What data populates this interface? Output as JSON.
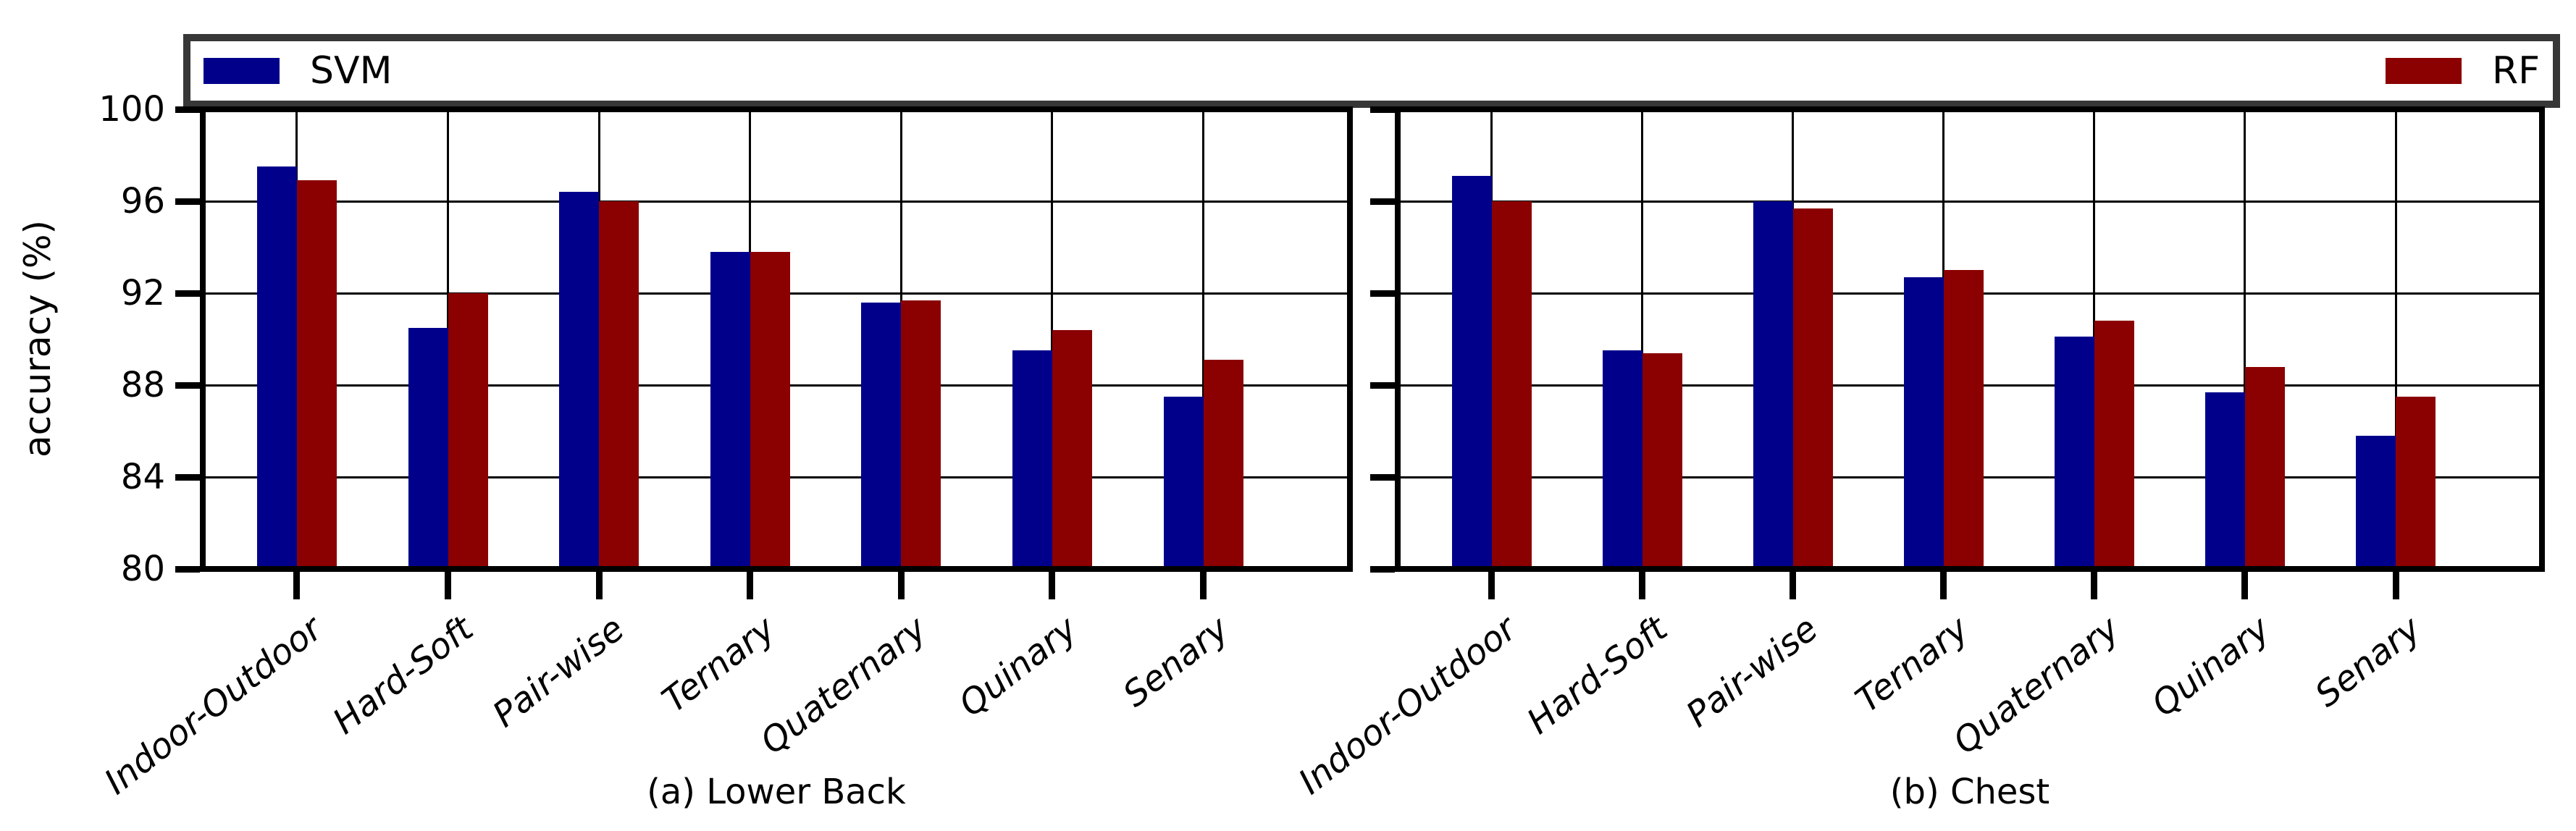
{
  "figure": {
    "ylabel": "accuracy (%)",
    "background": "#ffffff",
    "axis_color": "#000000",
    "legend": {
      "border_color": "#373737",
      "items": [
        {
          "label": "SVM",
          "color": "#00008B"
        },
        {
          "label": "RF",
          "color": "#8B0000"
        }
      ]
    }
  },
  "chart_data": [
    {
      "type": "bar",
      "title": "(a) Lower Back",
      "categories": [
        "Indoor-Outdoor",
        "Hard-Soft",
        "Pair-wise",
        "Ternary",
        "Quaternary",
        "Quinary",
        "Senary"
      ],
      "series": [
        {
          "name": "SVM",
          "color": "#00008B",
          "values": [
            97.5,
            90.5,
            96.4,
            93.8,
            91.6,
            89.5,
            87.5
          ]
        },
        {
          "name": "RF",
          "color": "#8B0000",
          "values": [
            96.9,
            92.0,
            96.0,
            93.8,
            91.7,
            90.4,
            89.1
          ]
        }
      ],
      "xlabel": "",
      "ylabel": "accuracy (%)",
      "ylim": [
        80,
        100
      ],
      "yticks": [
        80,
        84,
        88,
        92,
        96,
        100
      ],
      "grid": true,
      "legend_position": "top expanded, SVM left / RF right",
      "xtick_rotation_deg": 38
    },
    {
      "type": "bar",
      "title": "(b) Chest",
      "categories": [
        "Indoor-Outdoor",
        "Hard-Soft",
        "Pair-wise",
        "Ternary",
        "Quaternary",
        "Quinary",
        "Senary"
      ],
      "series": [
        {
          "name": "SVM",
          "color": "#00008B",
          "values": [
            97.1,
            89.5,
            96.0,
            92.7,
            90.1,
            87.7,
            85.8
          ]
        },
        {
          "name": "RF",
          "color": "#8B0000",
          "values": [
            96.0,
            89.4,
            95.7,
            93.0,
            90.8,
            88.8,
            87.5
          ]
        }
      ],
      "xlabel": "",
      "ylabel": "accuracy (%)",
      "ylim": [
        80,
        100
      ],
      "yticks": [
        80,
        84,
        88,
        92,
        96,
        100
      ],
      "grid": true,
      "legend_position": "top expanded, SVM left / RF right",
      "xtick_rotation_deg": 38
    }
  ]
}
